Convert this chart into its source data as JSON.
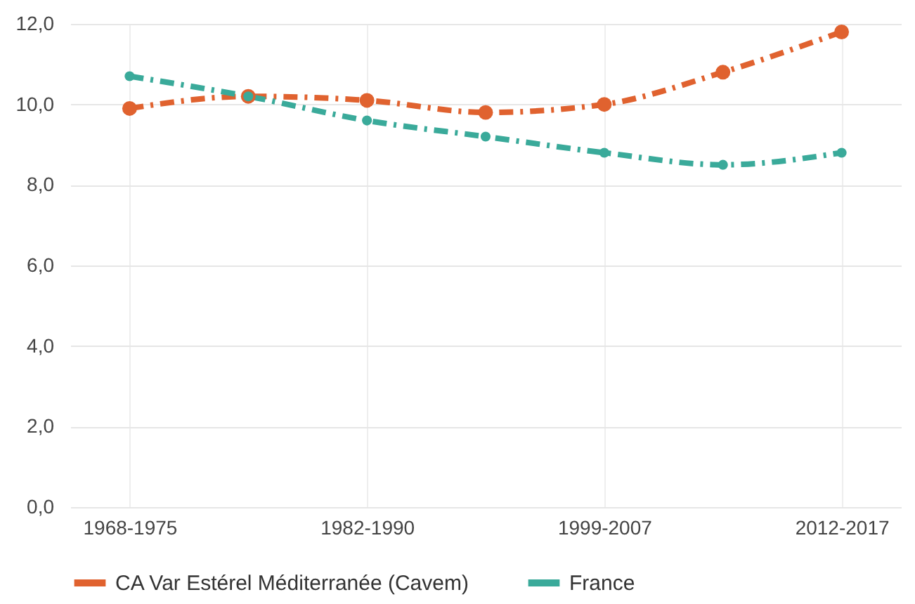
{
  "chart_data": {
    "type": "line",
    "categories": [
      "1968-1975",
      null,
      "1982-1990",
      null,
      "1999-2007",
      null,
      "2012-2017"
    ],
    "series": [
      {
        "name": "CA Var Estérel Méditerranée (Cavem)",
        "color": "#e0622f",
        "values": [
          9.9,
          10.2,
          10.1,
          9.8,
          10.0,
          10.8,
          11.8
        ]
      },
      {
        "name": "France",
        "color": "#3aaa9a",
        "values": [
          10.7,
          10.2,
          9.6,
          9.2,
          8.8,
          8.5,
          8.8
        ]
      }
    ],
    "ylim": [
      0,
      12
    ],
    "yticks": [
      {
        "value": 0,
        "label": "0,0"
      },
      {
        "value": 2,
        "label": "2,0"
      },
      {
        "value": 4,
        "label": "4,0"
      },
      {
        "value": 6,
        "label": "6,0"
      },
      {
        "value": 8,
        "label": "8,0"
      },
      {
        "value": 10,
        "label": "10,0"
      },
      {
        "value": 12,
        "label": "12,0"
      }
    ],
    "grid": true,
    "legend": "bottom",
    "marker": "circle",
    "line_style": "dashed"
  }
}
